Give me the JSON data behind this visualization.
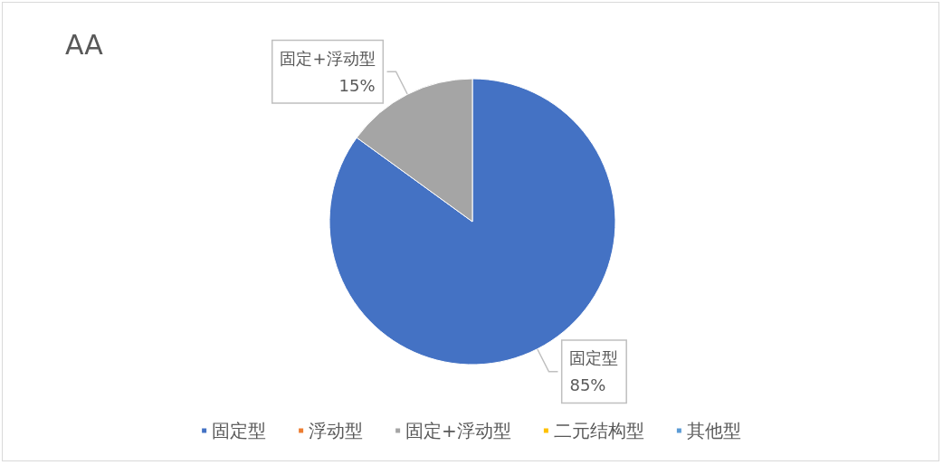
{
  "chart_data": {
    "type": "pie",
    "title": "AA",
    "categories": [
      "固定型",
      "浮动型",
      "固定+浮动型",
      "二元结构型",
      "其他型"
    ],
    "values": [
      85,
      0,
      15,
      0,
      0
    ],
    "colors": [
      "#4472c4",
      "#ed7d31",
      "#a5a5a5",
      "#ffc000",
      "#5b9bd5"
    ],
    "value_labels": [
      "85%",
      null,
      "15%",
      null,
      null
    ],
    "legend": "bottom"
  }
}
